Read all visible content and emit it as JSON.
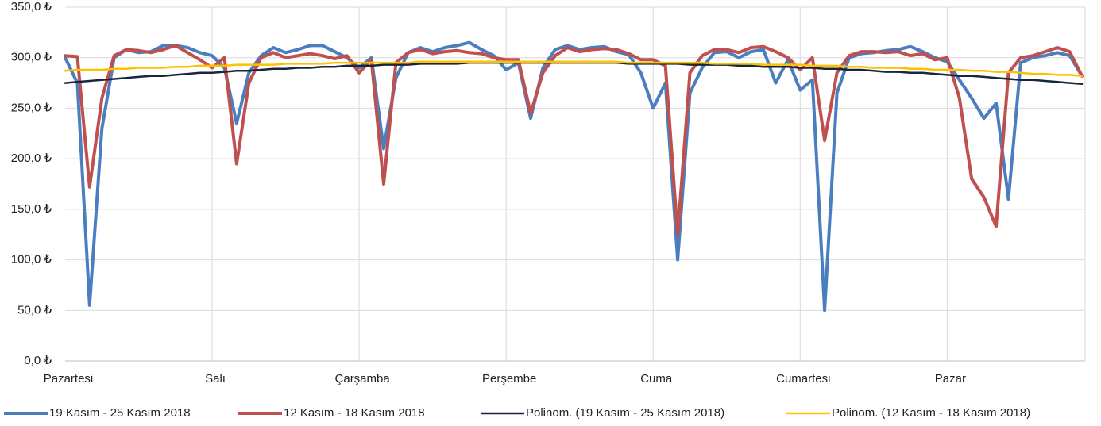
{
  "chart_data": {
    "type": "line",
    "categories": [
      "Pazartesi",
      null,
      null,
      null,
      null,
      null,
      null,
      null,
      null,
      null,
      null,
      null,
      "Salı",
      null,
      null,
      null,
      null,
      null,
      null,
      null,
      null,
      null,
      null,
      null,
      "Çarşamba",
      null,
      null,
      null,
      null,
      null,
      null,
      null,
      null,
      null,
      null,
      null,
      "Perşembe",
      null,
      null,
      null,
      null,
      null,
      null,
      null,
      null,
      null,
      null,
      null,
      "Cuma",
      null,
      null,
      null,
      null,
      null,
      null,
      null,
      null,
      null,
      null,
      null,
      "Cumartesi",
      null,
      null,
      null,
      null,
      null,
      null,
      null,
      null,
      null,
      null,
      null,
      "Pazar",
      null,
      null,
      null,
      null,
      null,
      null,
      null,
      null,
      null,
      null,
      null
    ],
    "series": [
      {
        "name": "19 Kasım - 25 Kasım 2018",
        "color": "#4a7ebf",
        "width": 4,
        "values": [
          300,
          275,
          55,
          230,
          300,
          308,
          305,
          306,
          312,
          312,
          310,
          305,
          302,
          290,
          235,
          285,
          302,
          310,
          305,
          308,
          312,
          312,
          306,
          300,
          290,
          300,
          210,
          280,
          305,
          310,
          306,
          310,
          312,
          315,
          308,
          302,
          288,
          295,
          240,
          290,
          308,
          312,
          308,
          310,
          311,
          306,
          303,
          285,
          250,
          275,
          100,
          265,
          290,
          305,
          306,
          300,
          306,
          308,
          275,
          298,
          268,
          278,
          50,
          265,
          300,
          304,
          305,
          307,
          308,
          311,
          306,
          300,
          296,
          278,
          260,
          240,
          255,
          160,
          295,
          300,
          302,
          305,
          302,
          282
        ]
      },
      {
        "name": "12 Kasım - 18 Kasım 2018",
        "color": "#c0504d",
        "width": 4,
        "values": [
          302,
          301,
          172,
          260,
          302,
          308,
          307,
          305,
          308,
          312,
          305,
          298,
          290,
          300,
          195,
          275,
          300,
          305,
          300,
          302,
          304,
          302,
          299,
          302,
          285,
          298,
          175,
          295,
          305,
          308,
          304,
          306,
          307,
          305,
          304,
          300,
          298,
          298,
          245,
          285,
          302,
          310,
          306,
          308,
          309,
          308,
          304,
          298,
          298,
          292,
          125,
          285,
          302,
          308,
          308,
          305,
          310,
          311,
          306,
          300,
          288,
          300,
          218,
          285,
          302,
          306,
          306,
          305,
          306,
          302,
          304,
          298,
          300,
          260,
          180,
          162,
          133,
          285,
          300,
          302,
          306,
          310,
          306,
          282
        ]
      },
      {
        "name": "Polinom. (19 Kasım - 25 Kasım 2018)",
        "color": "#17263c",
        "width": 2.5,
        "values": [
          275,
          276,
          277,
          278,
          279,
          280,
          281,
          282,
          282,
          283,
          284,
          285,
          285,
          286,
          287,
          287,
          288,
          289,
          289,
          290,
          290,
          291,
          291,
          292,
          292,
          292,
          293,
          293,
          293,
          294,
          294,
          294,
          294,
          295,
          295,
          295,
          295,
          295,
          295,
          295,
          295,
          295,
          295,
          295,
          295,
          295,
          294,
          294,
          294,
          294,
          294,
          293,
          293,
          293,
          293,
          292,
          292,
          291,
          291,
          291,
          290,
          290,
          289,
          289,
          288,
          288,
          287,
          286,
          286,
          285,
          285,
          284,
          283,
          282,
          282,
          281,
          280,
          279,
          278,
          278,
          277,
          276,
          275,
          274
        ]
      },
      {
        "name": "Polinom. (12 Kasım - 18 Kasım 2018)",
        "color": "#ffc000",
        "width": 2.5,
        "values": [
          287,
          288,
          288,
          288,
          289,
          289,
          290,
          290,
          290,
          291,
          291,
          292,
          292,
          292,
          293,
          293,
          293,
          293,
          294,
          294,
          294,
          294,
          295,
          295,
          295,
          295,
          295,
          295,
          295,
          296,
          296,
          296,
          296,
          296,
          296,
          296,
          296,
          296,
          296,
          296,
          296,
          296,
          296,
          296,
          296,
          296,
          295,
          295,
          295,
          295,
          295,
          295,
          295,
          294,
          294,
          294,
          294,
          293,
          293,
          293,
          293,
          292,
          292,
          292,
          291,
          291,
          290,
          290,
          290,
          289,
          289,
          288,
          288,
          288,
          287,
          287,
          286,
          286,
          285,
          284,
          284,
          283,
          283,
          282
        ]
      }
    ],
    "ylim": [
      0,
      350
    ],
    "yticks": [
      {
        "value": 0,
        "label": "0,0 ₺"
      },
      {
        "value": 50,
        "label": "50,0 ₺"
      },
      {
        "value": 100,
        "label": "100,0 ₺"
      },
      {
        "value": 150,
        "label": "150,0 ₺"
      },
      {
        "value": 200,
        "label": "200,0 ₺"
      },
      {
        "value": 250,
        "label": "250,0 ₺"
      },
      {
        "value": 300,
        "label": "300,0 ₺"
      },
      {
        "value": 350,
        "label": "350,0 ₺"
      }
    ],
    "grid": true,
    "legend": "bottom"
  }
}
